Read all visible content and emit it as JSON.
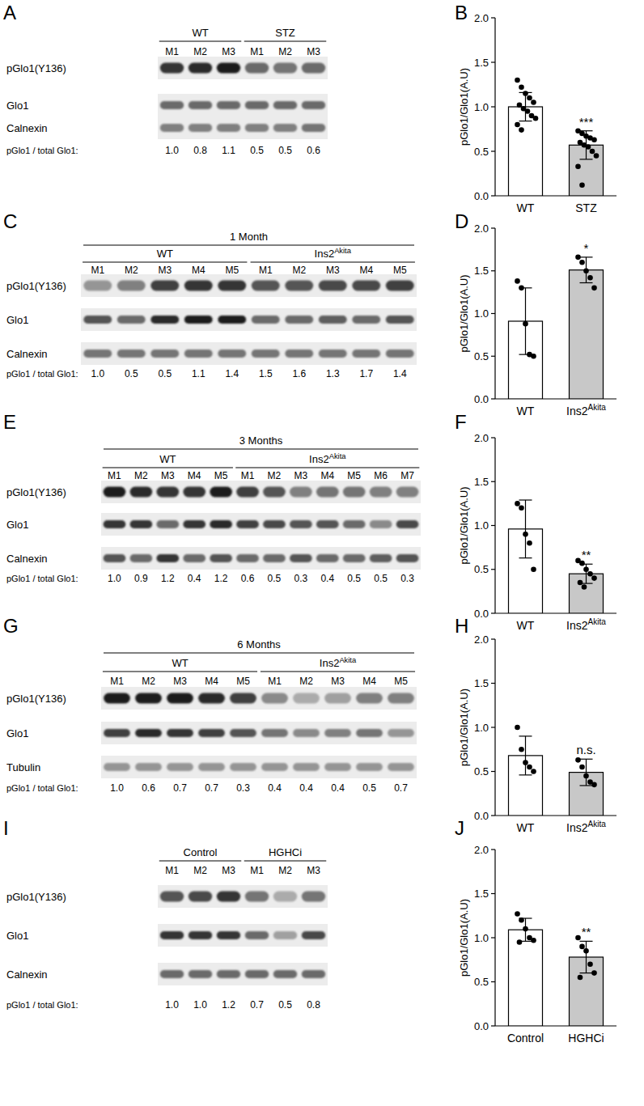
{
  "chart_data": [
    {
      "panel": "B",
      "type": "bar",
      "categories": [
        "WT",
        "STZ"
      ],
      "values": [
        1.0,
        0.57
      ],
      "error": [
        0.16,
        0.16
      ],
      "points": [
        [
          1.3,
          1.22,
          1.15,
          1.1,
          1.05,
          1.02,
          0.98,
          0.95,
          0.9,
          0.87,
          0.8,
          0.74
        ],
        [
          0.73,
          0.7,
          0.67,
          0.65,
          0.63,
          0.6,
          0.57,
          0.55,
          0.5,
          0.45,
          0.33,
          0.12
        ]
      ],
      "colors": [
        "#ffffff",
        "#c8c8c8"
      ],
      "ylabel": "pGlo1/Glo1(A.U)",
      "ylim": [
        0,
        2
      ],
      "yticks": [
        {
          "value": 0,
          "label": "0.0"
        },
        0.5,
        {
          "value": 1,
          "label": "1.0"
        },
        1.5,
        {
          "value": 2,
          "label": "2.0"
        }
      ],
      "annotations": [
        {
          "text": "***",
          "category": "STZ"
        }
      ]
    },
    {
      "panel": "D",
      "type": "bar",
      "categories": [
        "WT",
        "Ins2Akita"
      ],
      "values": [
        0.91,
        1.51
      ],
      "error": [
        0.39,
        0.15
      ],
      "points": [
        [
          1.38,
          1.3,
          0.88,
          0.52,
          0.5
        ],
        [
          1.66,
          1.6,
          1.5,
          1.42,
          1.3
        ]
      ],
      "colors": [
        "#ffffff",
        "#c8c8c8"
      ],
      "ylabel": "pGlo1/Glo1(A.U)",
      "ylim": [
        0,
        2
      ],
      "yticks": [
        {
          "value": 0,
          "label": "0.0"
        },
        0.5,
        {
          "value": 1,
          "label": "1.0"
        },
        1.5,
        {
          "value": 2,
          "label": "2.0"
        }
      ],
      "annotations": [
        {
          "text": "*",
          "category": "Ins2Akita"
        }
      ]
    },
    {
      "panel": "F",
      "type": "bar",
      "categories": [
        "WT",
        "Ins2Akita"
      ],
      "values": [
        0.96,
        0.45
      ],
      "error": [
        0.33,
        0.11
      ],
      "points": [
        [
          1.25,
          1.2,
          0.9,
          0.8,
          0.5
        ],
        [
          0.6,
          0.57,
          0.5,
          0.45,
          0.4,
          0.35,
          0.3
        ]
      ],
      "colors": [
        "#ffffff",
        "#c8c8c8"
      ],
      "ylabel": "pGlo1/Glo1(A.U)",
      "ylim": [
        0,
        2
      ],
      "yticks": [
        {
          "value": 0,
          "label": "0.0"
        },
        0.5,
        {
          "value": 1,
          "label": "1.0"
        },
        1.5,
        {
          "value": 2,
          "label": "2.0"
        }
      ],
      "annotations": [
        {
          "text": "**",
          "category": "Ins2Akita"
        }
      ]
    },
    {
      "panel": "H",
      "type": "bar",
      "categories": [
        "WT",
        "Ins2Akita"
      ],
      "values": [
        0.68,
        0.49
      ],
      "error": [
        0.22,
        0.15
      ],
      "points": [
        [
          1.0,
          0.75,
          0.6,
          0.55,
          0.5
        ],
        [
          0.63,
          0.55,
          0.45,
          0.38,
          0.35
        ]
      ],
      "colors": [
        "#ffffff",
        "#c8c8c8"
      ],
      "ylabel": "pGlo1/Glo1(A.U)",
      "ylim": [
        0,
        2
      ],
      "yticks": [
        {
          "value": 0,
          "label": "0.0"
        },
        0.5,
        {
          "value": 1,
          "label": "1.0"
        },
        1.5,
        {
          "value": 2,
          "label": "2.0"
        }
      ],
      "annotations": [
        {
          "text": "n.s.",
          "category": "Ins2Akita"
        }
      ]
    },
    {
      "panel": "J",
      "type": "bar",
      "categories": [
        "Control",
        "HGHCi"
      ],
      "values": [
        1.09,
        0.78
      ],
      "error": [
        0.13,
        0.18
      ],
      "points": [
        [
          1.27,
          1.2,
          1.1,
          1.0,
          0.97,
          0.95
        ],
        [
          1.0,
          0.9,
          0.85,
          0.7,
          0.6,
          0.55
        ]
      ],
      "colors": [
        "#ffffff",
        "#c8c8c8"
      ],
      "ylabel": "pGlo1/Glo1(A.U)",
      "ylim": [
        0,
        2
      ],
      "yticks": [
        {
          "value": 0,
          "label": "0.0"
        },
        0.5,
        {
          "value": 1,
          "label": "1.0"
        },
        1.5,
        {
          "value": 2,
          "label": "2.0"
        }
      ],
      "annotations": [
        {
          "text": "**",
          "category": "HGHCi"
        }
      ]
    }
  ],
  "blots": [
    {
      "panel": "A",
      "groups": [
        {
          "name": "WT",
          "lanes": [
            "M1",
            "M2",
            "M3"
          ]
        },
        {
          "name": "STZ",
          "lanes": [
            "M1",
            "M2",
            "M3"
          ]
        }
      ],
      "rows": [
        {
          "name": "pGlo1(Y136)",
          "intensity": [
            0.85,
            0.9,
            0.95,
            0.6,
            0.55,
            0.6
          ]
        },
        {
          "name": "Glo1",
          "intensity": [
            0.6,
            0.6,
            0.6,
            0.6,
            0.6,
            0.6
          ]
        },
        {
          "name": "Calnexin",
          "intensity": [
            0.5,
            0.5,
            0.5,
            0.5,
            0.5,
            0.55
          ]
        }
      ],
      "ratio_label": "pGlo1 / total Glo1:",
      "ratios": [
        "1.0",
        "0.8",
        "1.1",
        "0.5",
        "0.5",
        "0.6"
      ]
    },
    {
      "panel": "C",
      "title": "1 Month",
      "groups": [
        {
          "name": "WT",
          "lanes": [
            "M1",
            "M2",
            "M3",
            "M4",
            "M5"
          ]
        },
        {
          "name": "Ins2Akita",
          "lanes": [
            "M1",
            "M2",
            "M3",
            "M4",
            "M5"
          ]
        }
      ],
      "rows": [
        {
          "name": "pGlo1(Y136)",
          "intensity": [
            0.4,
            0.5,
            0.8,
            0.85,
            0.85,
            0.7,
            0.7,
            0.75,
            0.75,
            0.8
          ]
        },
        {
          "name": "Glo1",
          "intensity": [
            0.7,
            0.6,
            0.9,
            0.95,
            0.95,
            0.6,
            0.6,
            0.65,
            0.6,
            0.7
          ]
        },
        {
          "name": "Calnexin",
          "intensity": [
            0.55,
            0.55,
            0.55,
            0.55,
            0.55,
            0.55,
            0.55,
            0.55,
            0.55,
            0.55
          ]
        }
      ],
      "ratio_label": "pGlo1 / total Glo1:",
      "ratios": [
        "1.0",
        "0.5",
        "0.5",
        "1.1",
        "1.4",
        "1.5",
        "1.6",
        "1.3",
        "1.7",
        "1.4"
      ]
    },
    {
      "panel": "E",
      "title": "3 Months",
      "groups": [
        {
          "name": "WT",
          "lanes": [
            "M1",
            "M2",
            "M3",
            "M4",
            "M5"
          ]
        },
        {
          "name": "Ins2Akita",
          "lanes": [
            "M1",
            "M2",
            "M3",
            "M4",
            "M5",
            "M6",
            "M7"
          ]
        }
      ],
      "rows": [
        {
          "name": "pGlo1(Y136)",
          "intensity": [
            0.95,
            0.9,
            0.85,
            0.85,
            0.95,
            0.8,
            0.7,
            0.5,
            0.55,
            0.55,
            0.5,
            0.5
          ]
        },
        {
          "name": "Glo1",
          "intensity": [
            0.85,
            0.85,
            0.6,
            0.85,
            0.9,
            0.8,
            0.75,
            0.7,
            0.7,
            0.6,
            0.45,
            0.75
          ]
        },
        {
          "name": "Calnexin",
          "intensity": [
            0.7,
            0.6,
            0.85,
            0.6,
            0.7,
            0.6,
            0.6,
            0.7,
            0.6,
            0.6,
            0.65,
            0.7
          ]
        }
      ],
      "ratio_label": "pGlo1 / total Glo1:",
      "ratios": [
        "1.0",
        "0.9",
        "1.2",
        "0.4",
        "1.2",
        "0.6",
        "0.5",
        "0.3",
        "0.4",
        "0.5",
        "0.5",
        "0.3"
      ]
    },
    {
      "panel": "G",
      "title": "6 Months",
      "groups": [
        {
          "name": "WT",
          "lanes": [
            "M1",
            "M2",
            "M3",
            "M4",
            "M5"
          ]
        },
        {
          "name": "Ins2Akita",
          "lanes": [
            "M1",
            "M2",
            "M3",
            "M4",
            "M5"
          ]
        }
      ],
      "rows": [
        {
          "name": "pGlo1(Y136)",
          "intensity": [
            0.95,
            0.95,
            0.95,
            0.9,
            0.8,
            0.45,
            0.3,
            0.35,
            0.5,
            0.5
          ]
        },
        {
          "name": "Glo1",
          "intensity": [
            0.8,
            0.9,
            0.85,
            0.8,
            0.7,
            0.55,
            0.45,
            0.5,
            0.55,
            0.4
          ]
        },
        {
          "name": "Tubulin",
          "intensity": [
            0.4,
            0.4,
            0.4,
            0.4,
            0.4,
            0.4,
            0.4,
            0.4,
            0.4,
            0.4
          ]
        }
      ],
      "ratio_label": "pGlo1 / total Glo1:",
      "ratios": [
        "1.0",
        "0.6",
        "0.7",
        "0.7",
        "0.3",
        "0.4",
        "0.4",
        "0.4",
        "0.5",
        "0.7"
      ]
    },
    {
      "panel": "I",
      "groups": [
        {
          "name": "Control",
          "lanes": [
            "M1",
            "M2",
            "M3"
          ]
        },
        {
          "name": "HGHCi",
          "lanes": [
            "M1",
            "M2",
            "M3"
          ]
        }
      ],
      "rows": [
        {
          "name": "pGlo1(Y136)",
          "intensity": [
            0.7,
            0.75,
            0.85,
            0.55,
            0.3,
            0.55
          ]
        },
        {
          "name": "Glo1",
          "intensity": [
            0.85,
            0.85,
            0.85,
            0.6,
            0.35,
            0.75
          ]
        },
        {
          "name": "Calnexin",
          "intensity": [
            0.6,
            0.6,
            0.6,
            0.6,
            0.6,
            0.6
          ]
        }
      ],
      "ratio_label": "pGlo1 / total Glo1:",
      "ratios": [
        "1.0",
        "1.0",
        "1.2",
        "0.7",
        "0.5",
        "0.8"
      ]
    }
  ]
}
